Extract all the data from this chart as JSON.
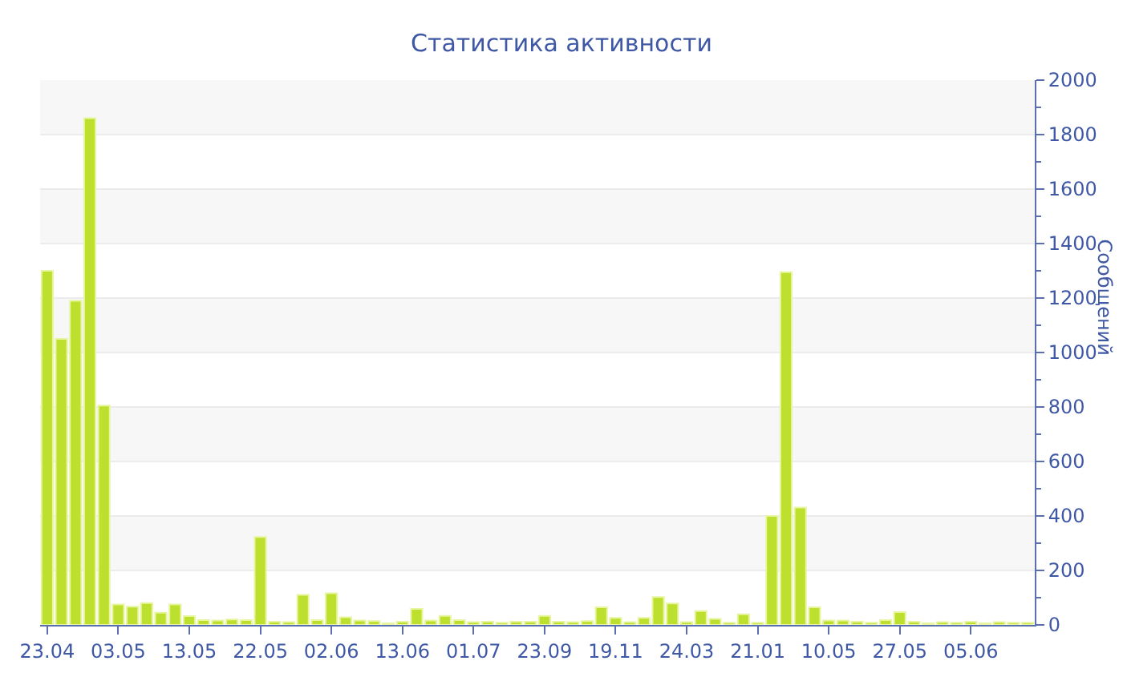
{
  "chart_data": {
    "type": "bar",
    "title": "Статистика активности",
    "ylabel": "Сообщений",
    "categories": [
      "23.04",
      null,
      null,
      null,
      null,
      "03.05",
      null,
      null,
      null,
      null,
      "13.05",
      null,
      null,
      null,
      null,
      "22.05",
      null,
      null,
      null,
      null,
      "02.06",
      null,
      null,
      null,
      null,
      "13.06",
      null,
      null,
      null,
      null,
      "01.07",
      null,
      null,
      null,
      null,
      "23.09",
      null,
      null,
      null,
      null,
      "19.11",
      null,
      null,
      null,
      null,
      "24.03",
      null,
      null,
      null,
      null,
      "21.01",
      null,
      null,
      null,
      null,
      "10.05",
      null,
      null,
      null,
      null,
      "27.05",
      null,
      null,
      null,
      null,
      "05.06",
      null,
      null,
      null,
      null
    ],
    "values": [
      1300,
      1050,
      1190,
      1860,
      805,
      75,
      67,
      80,
      45,
      75,
      32,
      18,
      16,
      20,
      18,
      323,
      12,
      10,
      110,
      18,
      116,
      28,
      16,
      14,
      6,
      12,
      59,
      16,
      33,
      18,
      10,
      12,
      8,
      12,
      12,
      33,
      12,
      10,
      14,
      65,
      26,
      10,
      26,
      102,
      79,
      10,
      51,
      22,
      8,
      39,
      8,
      400,
      1295,
      431,
      65,
      16,
      16,
      12,
      8,
      18,
      47,
      12,
      6,
      10,
      8,
      12,
      6,
      10,
      8,
      8
    ],
    "color": "#bde02f",
    "ylim": [
      0,
      2000
    ],
    "yticks": [
      0,
      200,
      400,
      600,
      800,
      1000,
      1200,
      1400,
      1600,
      1800,
      2000
    ],
    "grid": "y"
  }
}
